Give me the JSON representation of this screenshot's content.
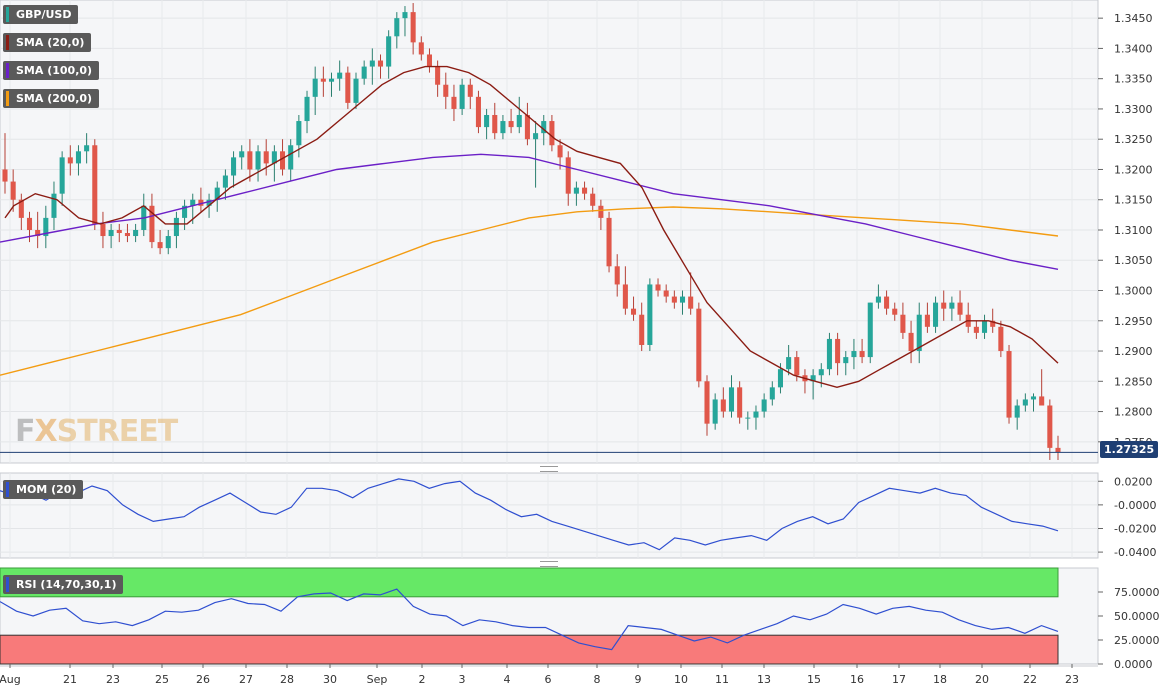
{
  "legends": {
    "main": [
      {
        "label": "GBP/USD",
        "color": "#26a69a"
      },
      {
        "label": "SMA (20,0)",
        "color": "#8b1c13"
      },
      {
        "label": "SMA (100,0)",
        "color": "#6b20c7"
      },
      {
        "label": "SMA (200,0)",
        "color": "#f39c12"
      }
    ],
    "mom": {
      "label": "MOM (20)",
      "color": "#2f4fd0"
    },
    "rsi": {
      "label": "RSI (14,70,30,1)",
      "color": "#2f4fd0"
    }
  },
  "price_tag": "1.27325",
  "logo": {
    "fx": "F",
    "x": "X",
    "street": "STREET"
  },
  "chart_data": [
    {
      "type": "candlestick",
      "series_name": "GBP/USD",
      "last_price": 1.27325,
      "ylim": [
        1.2715,
        1.348
      ],
      "y_ticks": [
        "1.3450",
        "1.3400",
        "1.3350",
        "1.3300",
        "1.3250",
        "1.3200",
        "1.3150",
        "1.3100",
        "1.3050",
        "1.3000",
        "1.2950",
        "1.2900",
        "1.2850",
        "1.2800",
        "1.2750"
      ],
      "x_tick_labels": [
        "Aug",
        "21",
        "23",
        "25",
        "26",
        "27",
        "28",
        "30",
        "Sep",
        "2",
        "3",
        "4",
        "6",
        "8",
        "9",
        "10",
        "11",
        "13",
        "15",
        "16",
        "17",
        "18",
        "20",
        "22",
        "23"
      ],
      "x_tick_positions": [
        10,
        70,
        113,
        162,
        203,
        246,
        287,
        330,
        377,
        422,
        462,
        507,
        548,
        597,
        638,
        681,
        722,
        764,
        814,
        857,
        899,
        940,
        982,
        1030,
        1072
      ],
      "candles": [
        [
          1.32,
          1.326,
          1.316,
          1.318
        ],
        [
          1.318,
          1.32,
          1.313,
          1.315
        ],
        [
          1.315,
          1.316,
          1.31,
          1.312
        ],
        [
          1.312,
          1.313,
          1.308,
          1.31
        ],
        [
          1.31,
          1.313,
          1.307,
          1.309
        ],
        [
          1.309,
          1.314,
          1.307,
          1.312
        ],
        [
          1.312,
          1.318,
          1.31,
          1.316
        ],
        [
          1.316,
          1.323,
          1.314,
          1.322
        ],
        [
          1.322,
          1.324,
          1.319,
          1.321
        ],
        [
          1.321,
          1.324,
          1.319,
          1.323
        ],
        [
          1.323,
          1.326,
          1.321,
          1.324
        ],
        [
          1.324,
          1.325,
          1.31,
          1.311
        ],
        [
          1.311,
          1.313,
          1.307,
          1.309
        ],
        [
          1.309,
          1.311,
          1.307,
          1.31
        ],
        [
          1.31,
          1.311,
          1.308,
          1.3095
        ],
        [
          1.3095,
          1.311,
          1.308,
          1.309
        ],
        [
          1.309,
          1.311,
          1.308,
          1.31
        ],
        [
          1.31,
          1.316,
          1.309,
          1.314
        ],
        [
          1.314,
          1.316,
          1.307,
          1.308
        ],
        [
          1.308,
          1.31,
          1.306,
          1.307
        ],
        [
          1.307,
          1.31,
          1.306,
          1.309
        ],
        [
          1.309,
          1.313,
          1.307,
          1.312
        ],
        [
          1.312,
          1.315,
          1.31,
          1.314
        ],
        [
          1.314,
          1.316,
          1.311,
          1.315
        ],
        [
          1.315,
          1.317,
          1.313,
          1.314
        ],
        [
          1.314,
          1.316,
          1.312,
          1.315
        ],
        [
          1.315,
          1.318,
          1.313,
          1.317
        ],
        [
          1.317,
          1.32,
          1.315,
          1.319
        ],
        [
          1.319,
          1.323,
          1.317,
          1.322
        ],
        [
          1.322,
          1.324,
          1.32,
          1.323
        ],
        [
          1.323,
          1.325,
          1.318,
          1.32
        ],
        [
          1.32,
          1.324,
          1.318,
          1.323
        ],
        [
          1.323,
          1.325,
          1.319,
          1.321
        ],
        [
          1.321,
          1.324,
          1.318,
          1.323
        ],
        [
          1.323,
          1.325,
          1.319,
          1.32
        ],
        [
          1.32,
          1.325,
          1.318,
          1.324
        ],
        [
          1.324,
          1.329,
          1.322,
          1.328
        ],
        [
          1.328,
          1.333,
          1.326,
          1.332
        ],
        [
          1.332,
          1.337,
          1.329,
          1.335
        ],
        [
          1.335,
          1.337,
          1.332,
          1.3345
        ],
        [
          1.3345,
          1.336,
          1.332,
          1.335
        ],
        [
          1.335,
          1.338,
          1.333,
          1.336
        ],
        [
          1.336,
          1.337,
          1.33,
          1.331
        ],
        [
          1.331,
          1.336,
          1.33,
          1.335
        ],
        [
          1.335,
          1.338,
          1.334,
          1.337
        ],
        [
          1.337,
          1.34,
          1.334,
          1.338
        ],
        [
          1.338,
          1.339,
          1.335,
          1.337
        ],
        [
          1.337,
          1.343,
          1.335,
          1.342
        ],
        [
          1.342,
          1.346,
          1.34,
          1.345
        ],
        [
          1.345,
          1.347,
          1.342,
          1.346
        ],
        [
          1.346,
          1.3475,
          1.339,
          1.341
        ],
        [
          1.341,
          1.342,
          1.338,
          1.339
        ],
        [
          1.339,
          1.34,
          1.336,
          1.337
        ],
        [
          1.337,
          1.338,
          1.332,
          1.334
        ],
        [
          1.334,
          1.336,
          1.33,
          1.332
        ],
        [
          1.332,
          1.334,
          1.328,
          1.33
        ],
        [
          1.33,
          1.335,
          1.329,
          1.334
        ],
        [
          1.334,
          1.335,
          1.33,
          1.332
        ],
        [
          1.332,
          1.333,
          1.326,
          1.327
        ],
        [
          1.327,
          1.33,
          1.325,
          1.329
        ],
        [
          1.329,
          1.331,
          1.325,
          1.326
        ],
        [
          1.326,
          1.329,
          1.325,
          1.328
        ],
        [
          1.328,
          1.33,
          1.326,
          1.327
        ],
        [
          1.327,
          1.332,
          1.326,
          1.329
        ],
        [
          1.329,
          1.331,
          1.324,
          1.325
        ],
        [
          1.325,
          1.328,
          1.317,
          1.326
        ],
        [
          1.326,
          1.329,
          1.324,
          1.328
        ],
        [
          1.328,
          1.329,
          1.323,
          1.324
        ],
        [
          1.324,
          1.325,
          1.32,
          1.322
        ],
        [
          1.322,
          1.323,
          1.314,
          1.316
        ],
        [
          1.316,
          1.318,
          1.314,
          1.317
        ],
        [
          1.317,
          1.318,
          1.315,
          1.316
        ],
        [
          1.316,
          1.317,
          1.313,
          1.314
        ],
        [
          1.314,
          1.315,
          1.31,
          1.312
        ],
        [
          1.312,
          1.313,
          1.303,
          1.304
        ],
        [
          1.304,
          1.306,
          1.299,
          1.301
        ],
        [
          1.301,
          1.304,
          1.296,
          1.297
        ],
        [
          1.297,
          1.299,
          1.295,
          1.296
        ],
        [
          1.296,
          1.298,
          1.29,
          1.291
        ],
        [
          1.291,
          1.302,
          1.29,
          1.301
        ],
        [
          1.301,
          1.302,
          1.299,
          1.3
        ],
        [
          1.3,
          1.301,
          1.298,
          1.299
        ],
        [
          1.299,
          1.3,
          1.297,
          1.298
        ],
        [
          1.298,
          1.3,
          1.296,
          1.299
        ],
        [
          1.299,
          1.303,
          1.296,
          1.297
        ],
        [
          1.297,
          1.298,
          1.284,
          1.285
        ],
        [
          1.285,
          1.286,
          1.276,
          1.278
        ],
        [
          1.278,
          1.283,
          1.277,
          1.282
        ],
        [
          1.282,
          1.284,
          1.279,
          1.28
        ],
        [
          1.28,
          1.286,
          1.279,
          1.284
        ],
        [
          1.284,
          1.285,
          1.278,
          1.279
        ],
        [
          1.279,
          1.28,
          1.277,
          1.279
        ],
        [
          1.279,
          1.281,
          1.277,
          1.28
        ],
        [
          1.28,
          1.283,
          1.279,
          1.282
        ],
        [
          1.282,
          1.285,
          1.281,
          1.284
        ],
        [
          1.284,
          1.288,
          1.283,
          1.287
        ],
        [
          1.287,
          1.291,
          1.286,
          1.289
        ],
        [
          1.289,
          1.29,
          1.285,
          1.286
        ],
        [
          1.286,
          1.287,
          1.283,
          1.285
        ],
        [
          1.285,
          1.287,
          1.282,
          1.286
        ],
        [
          1.286,
          1.288,
          1.284,
          1.287
        ],
        [
          1.287,
          1.293,
          1.286,
          1.292
        ],
        [
          1.292,
          1.293,
          1.286,
          1.288
        ],
        [
          1.288,
          1.29,
          1.286,
          1.289
        ],
        [
          1.289,
          1.292,
          1.287,
          1.29
        ],
        [
          1.29,
          1.292,
          1.288,
          1.289
        ],
        [
          1.289,
          1.298,
          1.288,
          1.298
        ],
        [
          1.298,
          1.301,
          1.297,
          1.299
        ],
        [
          1.299,
          1.3,
          1.296,
          1.297
        ],
        [
          1.297,
          1.298,
          1.295,
          1.296
        ],
        [
          1.296,
          1.298,
          1.292,
          1.293
        ],
        [
          1.293,
          1.295,
          1.288,
          1.29
        ],
        [
          1.29,
          1.298,
          1.288,
          1.296
        ],
        [
          1.296,
          1.298,
          1.293,
          1.294
        ],
        [
          1.294,
          1.299,
          1.293,
          1.298
        ],
        [
          1.298,
          1.3,
          1.295,
          1.297
        ],
        [
          1.297,
          1.299,
          1.295,
          1.298
        ],
        [
          1.298,
          1.3,
          1.295,
          1.296
        ],
        [
          1.296,
          1.298,
          1.293,
          1.294
        ],
        [
          1.294,
          1.295,
          1.292,
          1.293
        ],
        [
          1.293,
          1.296,
          1.292,
          1.295
        ],
        [
          1.295,
          1.297,
          1.293,
          1.294
        ],
        [
          1.294,
          1.295,
          1.289,
          1.29
        ],
        [
          1.29,
          1.291,
          1.278,
          1.279
        ],
        [
          1.279,
          1.282,
          1.277,
          1.281
        ],
        [
          1.281,
          1.283,
          1.28,
          1.282
        ],
        [
          1.282,
          1.283,
          1.28,
          1.2825
        ],
        [
          1.2825,
          1.287,
          1.281,
          1.281
        ],
        [
          1.281,
          1.282,
          1.272,
          1.274
        ],
        [
          1.274,
          1.276,
          1.272,
          1.27325
        ]
      ],
      "sma20": [
        [
          1.312,
          1.314,
          1.316,
          1.315,
          1.312,
          1.311,
          1.312,
          1.314,
          1.311,
          1.311,
          1.314,
          1.317,
          1.319,
          1.321,
          1.323,
          1.325,
          1.328,
          1.331,
          1.334,
          1.336,
          1.337,
          1.337,
          1.336,
          1.334,
          1.331,
          1.328,
          1.325,
          1.323,
          1.322,
          1.321,
          1.317,
          1.31,
          1.304,
          1.298,
          1.294,
          1.29,
          1.288,
          1.286,
          1.285,
          1.284,
          1.285,
          1.287,
          1.289,
          1.291,
          1.293,
          1.295,
          1.295,
          1.294,
          1.292,
          1.288
        ],
        [
          0,
          2,
          7,
          12,
          17,
          22,
          27,
          32,
          37,
          42,
          47,
          52,
          57,
          62,
          67,
          72,
          77,
          82,
          87,
          92,
          97,
          102,
          107,
          112,
          117,
          122,
          127,
          132,
          137,
          142,
          147,
          152,
          157,
          162,
          167,
          172,
          177,
          182,
          187,
          192,
          197,
          202,
          207,
          212,
          217,
          222,
          227,
          232,
          237,
          243
        ]
      ],
      "sma100": [
        1.308,
        1.3095,
        1.311,
        1.312,
        1.314,
        1.316,
        1.318,
        1.32,
        1.321,
        1.322,
        1.3225,
        1.322,
        1.32,
        1.318,
        1.316,
        1.315,
        1.314,
        1.3125,
        1.311,
        1.309,
        1.307,
        1.305,
        1.3035
      ],
      "sma200": [
        1.286,
        1.288,
        1.29,
        1.292,
        1.294,
        1.296,
        1.299,
        1.302,
        1.305,
        1.308,
        1.31,
        1.312,
        1.313,
        1.3135,
        1.3138,
        1.3135,
        1.313,
        1.3125,
        1.312,
        1.3115,
        1.311,
        1.31,
        1.309
      ]
    },
    {
      "type": "line",
      "series_name": "MOM (20)",
      "ylim": [
        -0.045,
        0.027
      ],
      "y_ticks": [
        "0.0200",
        "-0.0000",
        "-0.0200",
        "-0.0400"
      ],
      "values": [
        0.012,
        0.008,
        0.01,
        0.004,
        0.012,
        0.01,
        0.016,
        0.012,
        0.0,
        -0.008,
        -0.014,
        -0.012,
        -0.01,
        -0.002,
        0.004,
        0.01,
        0.002,
        -0.006,
        -0.008,
        -0.002,
        0.014,
        0.014,
        0.012,
        0.006,
        0.014,
        0.018,
        0.022,
        0.02,
        0.014,
        0.018,
        0.02,
        0.01,
        0.004,
        -0.004,
        -0.01,
        -0.008,
        -0.014,
        -0.018,
        -0.022,
        -0.026,
        -0.03,
        -0.034,
        -0.032,
        -0.038,
        -0.028,
        -0.03,
        -0.034,
        -0.03,
        -0.028,
        -0.026,
        -0.03,
        -0.02,
        -0.014,
        -0.01,
        -0.016,
        -0.012,
        0.002,
        0.008,
        0.014,
        0.012,
        0.01,
        0.014,
        0.01,
        0.008,
        -0.002,
        -0.008,
        -0.014,
        -0.016,
        -0.018,
        -0.022
      ]
    },
    {
      "type": "line",
      "series_name": "RSI (14,70,30,1)",
      "ylim": [
        0,
        100
      ],
      "overbought": 70,
      "oversold": 30,
      "y_ticks": [
        "75.0000",
        "50.0000",
        "25.0000",
        "0.0000"
      ],
      "values": [
        65,
        55,
        50,
        56,
        58,
        45,
        42,
        44,
        40,
        46,
        55,
        54,
        56,
        64,
        68,
        63,
        62,
        55,
        70,
        73,
        74,
        66,
        73,
        72,
        78,
        60,
        52,
        50,
        40,
        46,
        44,
        40,
        38,
        38,
        30,
        22,
        18,
        15,
        40,
        38,
        36,
        30,
        24,
        28,
        22,
        30,
        36,
        42,
        50,
        46,
        52,
        62,
        58,
        52,
        58,
        60,
        56,
        54,
        46,
        40,
        36,
        38,
        32,
        40,
        34
      ]
    }
  ]
}
